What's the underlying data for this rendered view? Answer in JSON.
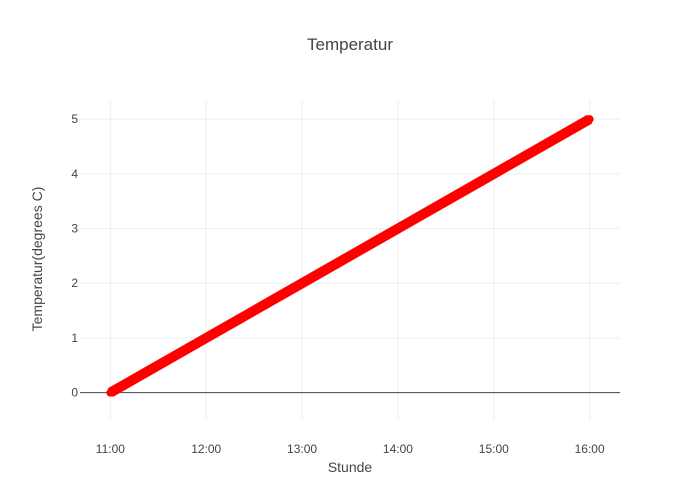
{
  "chart_data": {
    "type": "line",
    "title": "Temperatur",
    "xlabel": "Stunde",
    "ylabel": "Temperatur(degrees C)",
    "x_ticks": [
      "11:00",
      "12:00",
      "13:00",
      "14:00",
      "15:00",
      "16:00"
    ],
    "y_ticks": [
      0,
      1,
      2,
      3,
      4,
      5
    ],
    "xlim": [
      "10:41",
      "16:19"
    ],
    "ylim": [
      -0.5,
      5.35
    ],
    "grid": true,
    "series": [
      {
        "x": [
          "11:00",
          "12:00",
          "13:00",
          "14:00",
          "15:00",
          "16:00"
        ],
        "y": [
          0,
          1,
          2,
          3,
          4,
          5
        ],
        "color": "#ff0000"
      }
    ]
  }
}
